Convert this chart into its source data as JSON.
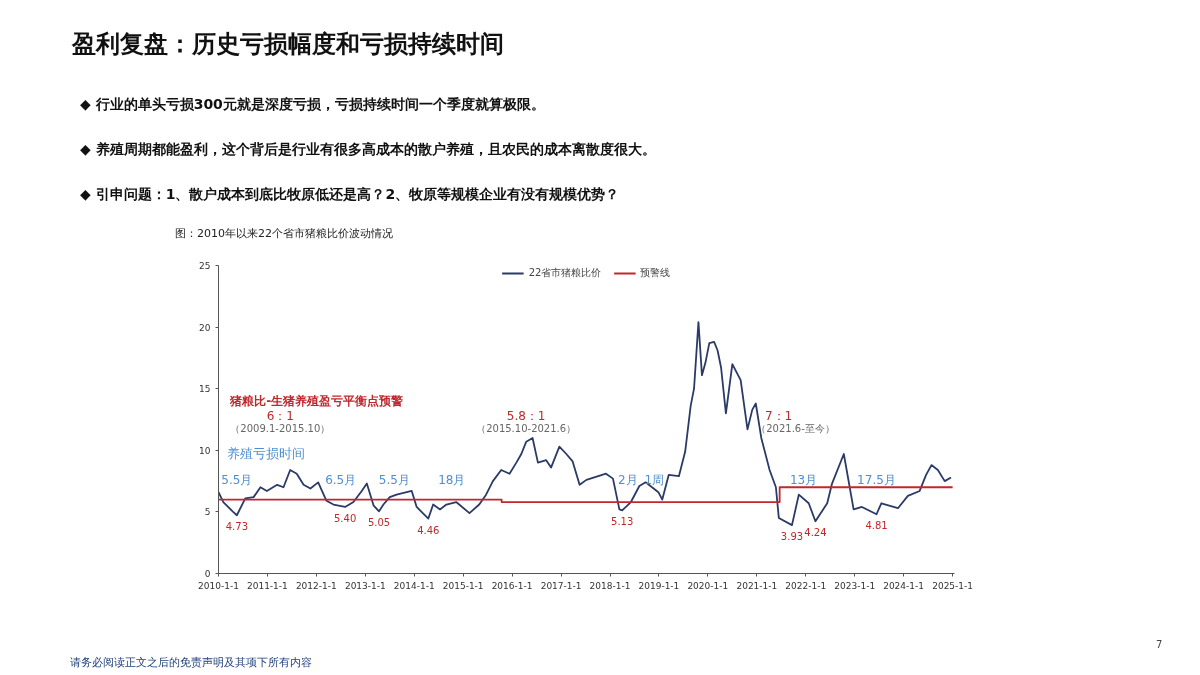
{
  "chart_data": {
    "type": "line",
    "title": "盈利复盘：历史亏损幅度和亏损持续时间",
    "subtitle": "图：2010年以来22个省市猪粮比价波动情况",
    "annotations": [
      "◆  行业的单头亏损300元就是深度亏损，亏损持续时间一个季度就算极限。",
      "◆  养殖周期都能盈利，这个背后是行业有很多高成本的散户养殖，且农民的成本离散度很大。",
      "◆  引申问题：1、散户成本到底比牧原低还是高？2、牧原等规模企业有没有规模优势？",
      "请务必阅读正文之后的免责声明及其项下所有内容",
      "7",
      "猪粮比-生猪养殖盈亏平衡点预警",
      "6：1",
      "（2009.1-2015.10）",
      "5.8：1",
      "（2015.10-2021.6）",
      "7：1",
      "（2021.6-至今）",
      "养殖亏损时间",
      "5.5月",
      "6.5月",
      "5.5月",
      "18月",
      "2月",
      "1周",
      "13月",
      "17.5月",
      {
        "text": "4.73",
        "x": "2010-05-18",
        "y": 4.73
      },
      {
        "text": "5.40",
        "x": "2012-08-03",
        "y": 5.4
      },
      {
        "text": "5.05",
        "x": "2013-04-13",
        "y": 5.05
      },
      {
        "text": "4.46",
        "x": "2014-04-16",
        "y": 4.46
      },
      {
        "text": "5.13",
        "x": "2018-04-02",
        "y": 5.13
      },
      {
        "text": "3.93",
        "x": "2021-09-20",
        "y": 3.93
      },
      {
        "text": "4.24",
        "x": "2022-03-14",
        "y": 4.24
      },
      {
        "text": "4.81",
        "x": "2023-06-13",
        "y": 4.81
      }
    ],
    "xlim": [
      "2010-01-01",
      "2025-01-15"
    ],
    "xticks": [
      {
        "value": "2010-01-01",
        "label": "2010-1-1"
      },
      {
        "value": "2011-01-01",
        "label": "2011-1-1"
      },
      {
        "value": "2012-01-01",
        "label": "2012-1-1"
      },
      {
        "value": "2013-01-01",
        "label": "2013-1-1"
      },
      {
        "value": "2014-01-01",
        "label": "2014-1-1"
      },
      {
        "value": "2015-01-01",
        "label": "2015-1-1"
      },
      {
        "value": "2016-01-01",
        "label": "2016-1-1"
      },
      {
        "value": "2017-01-01",
        "label": "2017-1-1"
      },
      {
        "value": "2018-01-01",
        "label": "2018-1-1"
      },
      {
        "value": "2019-01-01",
        "label": "2019-1-1"
      },
      {
        "value": "2020-01-01",
        "label": "2020-1-1"
      },
      {
        "value": "2021-01-01",
        "label": "2021-1-1"
      },
      {
        "value": "2022-01-01",
        "label": "2022-1-1"
      },
      {
        "value": "2023-01-01",
        "label": "2023-1-1"
      },
      {
        "value": "2024-01-01",
        "label": "2024-1-1"
      },
      {
        "value": "2025-01-01",
        "label": "2025-1-1"
      }
    ],
    "ylim": [
      0,
      25
    ],
    "yticks": [
      0,
      5,
      10,
      15,
      20,
      25
    ],
    "grid": false,
    "legend": "top",
    "series": [
      {
        "name": "22省市猪粮比价",
        "color": "#2b3a67",
        "x": [
          "2010-01-01",
          "2010-02-06",
          "2010-04-20",
          "2010-05-18",
          "2010-07-20",
          "2010-09-20",
          "2010-11-10",
          "2010-12-28",
          "2011-03-15",
          "2011-05-01",
          "2011-06-20",
          "2011-08-08",
          "2011-09-28",
          "2011-11-18",
          "2012-01-15",
          "2012-03-17",
          "2012-05-08",
          "2012-08-03",
          "2012-10-04",
          "2012-12-05",
          "2013-01-12",
          "2013-03-04",
          "2013-04-13",
          "2013-05-16",
          "2013-07-02",
          "2013-08-22",
          "2013-12-13",
          "2014-01-19",
          "2014-04-16",
          "2014-05-22",
          "2014-07-12",
          "2014-08-29",
          "2014-11-10",
          "2015-02-17",
          "2015-05-01",
          "2015-06-21",
          "2015-08-11",
          "2015-10-12",
          "2015-12-13",
          "2016-02-02",
          "2016-03-10",
          "2016-04-16",
          "2016-06-02",
          "2016-07-12",
          "2016-09-12",
          "2016-10-18",
          "2016-12-19",
          "2017-02-09",
          "2017-03-28",
          "2017-05-19",
          "2017-07-09",
          "2017-12-02",
          "2018-01-23",
          "2018-03-12",
          "2018-04-02",
          "2018-06-06",
          "2018-08-08",
          "2018-09-24",
          "2018-12-28",
          "2019-01-26",
          "2019-03-15",
          "2019-05-30",
          "2019-07-16",
          "2019-08-26",
          "2019-09-20",
          "2019-10-23",
          "2019-11-18",
          "2019-12-14",
          "2020-01-12",
          "2020-02-17",
          "2020-03-14",
          "2020-04-09",
          "2020-05-15",
          "2020-07-02",
          "2020-09-02",
          "2020-10-23",
          "2020-11-28",
          "2020-12-24",
          "2021-02-03",
          "2021-04-06",
          "2021-05-23",
          "2021-06-14",
          "2021-09-20",
          "2021-11-10",
          "2022-01-23",
          "2022-03-14",
          "2022-06-10",
          "2022-07-16",
          "2022-10-12",
          "2022-12-24",
          "2023-02-24",
          "2023-06-13",
          "2023-07-19",
          "2023-11-20",
          "2024-02-02",
          "2024-04-30",
          "2024-06-17",
          "2024-07-27",
          "2024-09-13",
          "2024-11-03",
          "2024-12-20"
        ],
        "values": [
          6.6,
          5.8,
          5.0,
          4.73,
          6.1,
          6.2,
          7.0,
          6.7,
          7.2,
          7.0,
          8.4,
          8.1,
          7.2,
          6.9,
          7.4,
          5.9,
          5.6,
          5.4,
          5.8,
          6.7,
          7.3,
          5.5,
          5.05,
          5.6,
          6.2,
          6.4,
          6.7,
          5.4,
          4.46,
          5.6,
          5.2,
          5.6,
          5.8,
          4.9,
          5.6,
          6.4,
          7.5,
          8.4,
          8.1,
          9.0,
          9.7,
          10.7,
          11.0,
          9.0,
          9.2,
          8.6,
          10.3,
          9.7,
          9.1,
          7.2,
          7.6,
          8.1,
          7.7,
          5.2,
          5.13,
          5.8,
          7.1,
          7.4,
          6.6,
          6.0,
          8.0,
          7.9,
          9.9,
          13.6,
          15.0,
          20.4,
          16.1,
          17.1,
          18.7,
          18.8,
          18.1,
          16.7,
          13.0,
          17.0,
          15.7,
          11.7,
          13.3,
          13.8,
          11.0,
          8.4,
          7.0,
          4.5,
          3.93,
          6.4,
          5.7,
          4.24,
          5.7,
          7.3,
          9.7,
          5.2,
          5.4,
          4.81,
          5.7,
          5.3,
          6.3,
          6.7,
          8.0,
          8.8,
          8.4,
          7.5,
          7.8
        ]
      },
      {
        "name": "预警线",
        "color": "#c0282d",
        "type": "step",
        "x": [
          "2010-01-01",
          "2015-10-15",
          "2021-06-20",
          "2025-01-01"
        ],
        "values": [
          6,
          5.8,
          7,
          7
        ]
      }
    ]
  }
}
